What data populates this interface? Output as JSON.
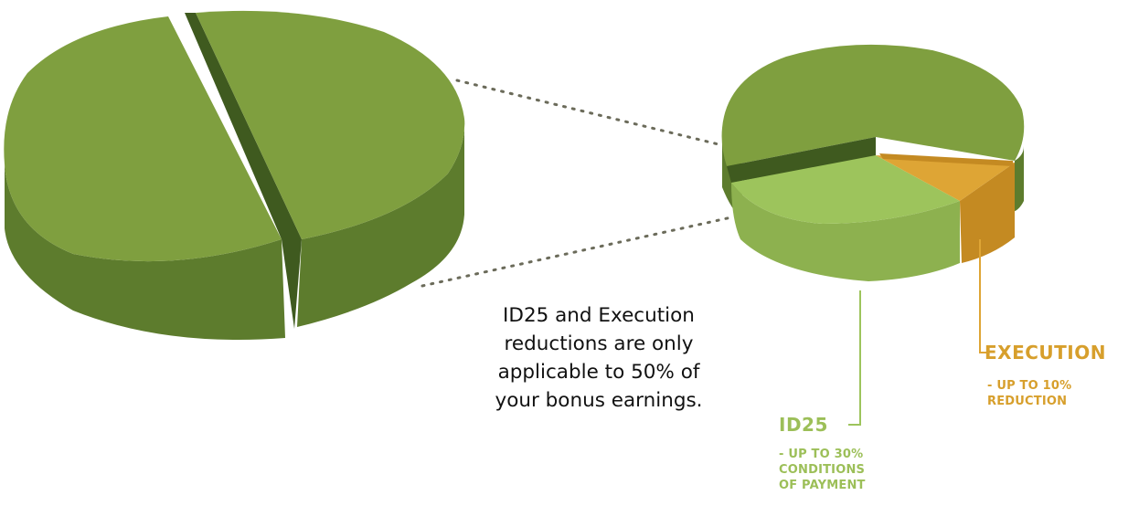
{
  "caption": {
    "lines": [
      "ID25 and Execution",
      "reductions are only",
      "applicable to 50% of",
      "your bonus earnings."
    ]
  },
  "labels": {
    "execution": {
      "title": "EXECUTION",
      "lines": [
        "- UP TO 10%",
        "REDUCTION"
      ]
    },
    "id25": {
      "title": "ID25",
      "lines": [
        "- UP TO 30%",
        "CONDITIONS",
        "OF PAYMENT"
      ]
    }
  },
  "colors": {
    "dark_green_top": "#7f9f3f",
    "dark_green_side": "#5d7c2d",
    "dark_green_gap": "#3f5a1f",
    "light_green_top": "#9dc45c",
    "light_green_side": "#8db14f",
    "execution_top": "#dea535",
    "execution_side": "#c48a22",
    "dots": "#6b6b5a"
  }
}
